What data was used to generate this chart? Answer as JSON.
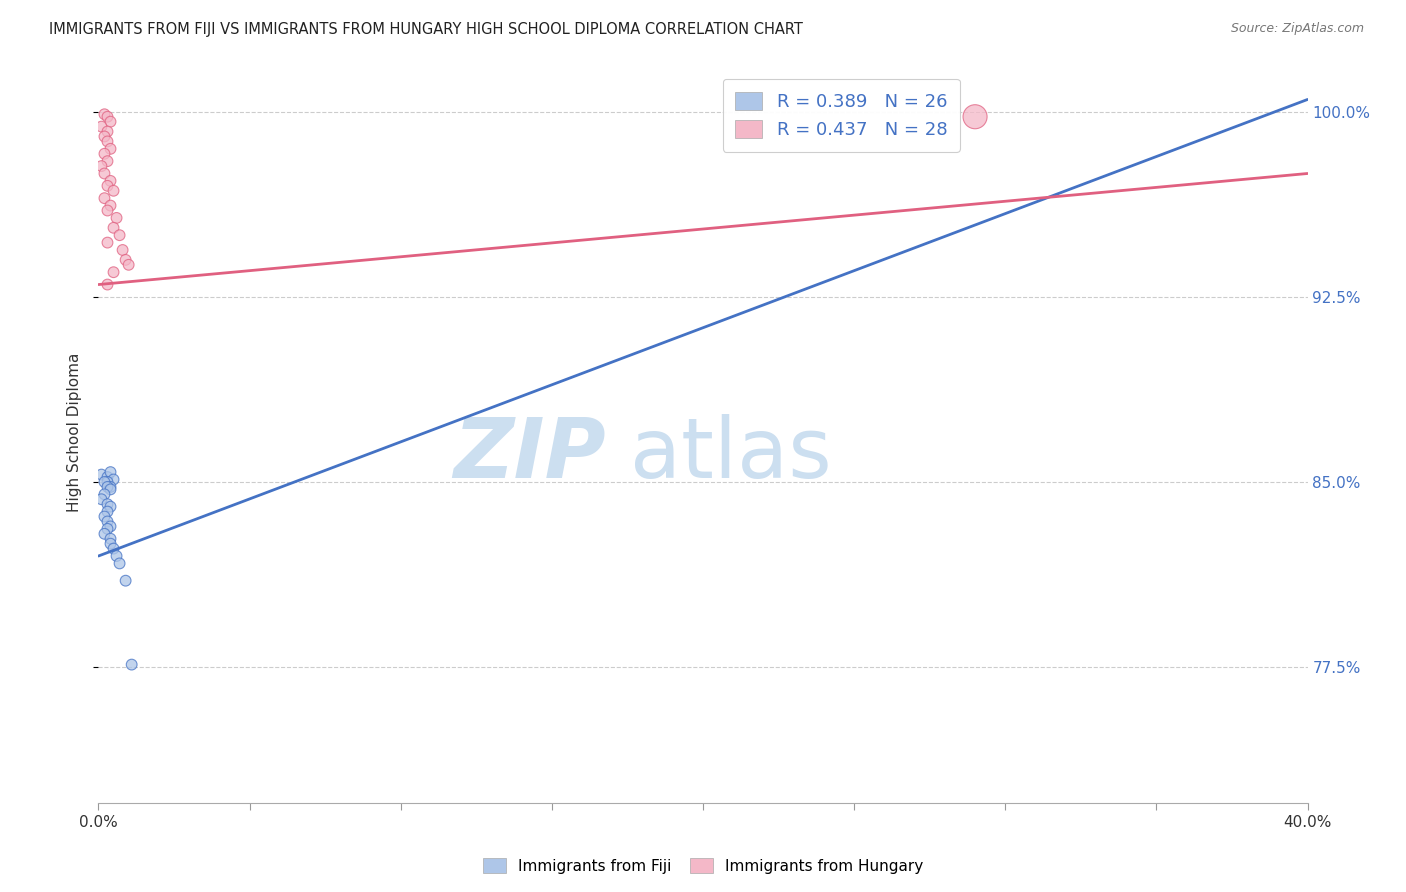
{
  "title": "IMMIGRANTS FROM FIJI VS IMMIGRANTS FROM HUNGARY HIGH SCHOOL DIPLOMA CORRELATION CHART",
  "source": "Source: ZipAtlas.com",
  "ylabel": "High School Diploma",
  "legend_fiji": "Immigrants from Fiji",
  "legend_hungary": "Immigrants from Hungary",
  "R_fiji": 0.389,
  "N_fiji": 26,
  "R_hungary": 0.437,
  "N_hungary": 28,
  "color_fiji": "#aec6e8",
  "color_hungary": "#f4b8c8",
  "line_color_fiji": "#4472c4",
  "line_color_hungary": "#e06080",
  "background_color": "#ffffff",
  "xlim": [
    0.0,
    0.4
  ],
  "ylim": [
    0.72,
    1.02
  ],
  "ytick_vals": [
    1.0,
    0.925,
    0.85,
    0.775
  ],
  "ytick_labels": [
    "100.0%",
    "92.5%",
    "85.0%",
    "77.5%"
  ],
  "fiji_x": [
    0.001,
    0.003,
    0.004,
    0.005,
    0.003,
    0.004,
    0.002,
    0.003,
    0.004,
    0.002,
    0.001,
    0.003,
    0.004,
    0.003,
    0.002,
    0.003,
    0.004,
    0.003,
    0.002,
    0.004,
    0.004,
    0.005,
    0.006,
    0.007,
    0.009,
    0.011
  ],
  "fiji_y": [
    0.853,
    0.852,
    0.854,
    0.851,
    0.85,
    0.848,
    0.85,
    0.848,
    0.847,
    0.845,
    0.843,
    0.841,
    0.84,
    0.838,
    0.836,
    0.834,
    0.832,
    0.831,
    0.829,
    0.827,
    0.825,
    0.823,
    0.82,
    0.817,
    0.81,
    0.776
  ],
  "fiji_sizes": [
    60,
    60,
    60,
    60,
    60,
    60,
    60,
    60,
    60,
    60,
    60,
    60,
    60,
    60,
    60,
    60,
    60,
    60,
    60,
    60,
    60,
    60,
    60,
    60,
    60,
    60
  ],
  "hungary_x": [
    0.002,
    0.003,
    0.004,
    0.001,
    0.003,
    0.002,
    0.003,
    0.004,
    0.002,
    0.003,
    0.001,
    0.002,
    0.004,
    0.003,
    0.005,
    0.002,
    0.004,
    0.003,
    0.006,
    0.005,
    0.007,
    0.003,
    0.008,
    0.009,
    0.01,
    0.005,
    0.003,
    0.29
  ],
  "hungary_y": [
    0.999,
    0.998,
    0.996,
    0.994,
    0.992,
    0.99,
    0.988,
    0.985,
    0.983,
    0.98,
    0.978,
    0.975,
    0.972,
    0.97,
    0.968,
    0.965,
    0.962,
    0.96,
    0.957,
    0.953,
    0.95,
    0.947,
    0.944,
    0.94,
    0.938,
    0.935,
    0.93,
    0.998
  ],
  "hungary_sizes": [
    60,
    60,
    60,
    60,
    60,
    60,
    60,
    60,
    60,
    60,
    60,
    60,
    60,
    60,
    60,
    60,
    60,
    60,
    60,
    60,
    60,
    60,
    60,
    60,
    60,
    60,
    60,
    300
  ],
  "fiji_line_x0": 0.0,
  "fiji_line_y0": 0.82,
  "fiji_line_x1": 0.4,
  "fiji_line_y1": 1.005,
  "hungary_line_x0": 0.0,
  "hungary_line_y0": 0.93,
  "hungary_line_x1": 0.4,
  "hungary_line_y1": 0.975
}
